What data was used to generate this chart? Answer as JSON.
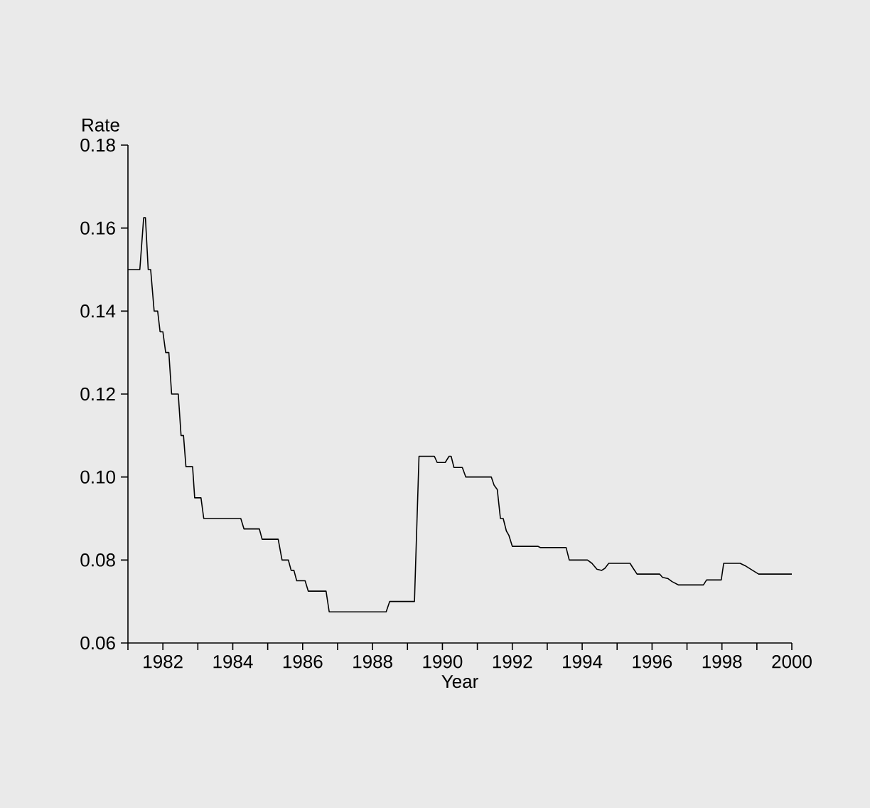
{
  "chart_data": {
    "type": "line",
    "xlabel": "Year",
    "ylabel": "Rate",
    "xlim": [
      1981,
      2000
    ],
    "ylim": [
      0.06,
      0.18
    ],
    "xticks": [
      {
        "value": 1981,
        "label": null
      },
      {
        "value": 1982,
        "label": "1982"
      },
      {
        "value": 1983,
        "label": null
      },
      {
        "value": 1984,
        "label": "1984"
      },
      {
        "value": 1985,
        "label": null
      },
      {
        "value": 1986,
        "label": "1986"
      },
      {
        "value": 1987,
        "label": null
      },
      {
        "value": 1988,
        "label": "1988"
      },
      {
        "value": 1989,
        "label": null
      },
      {
        "value": 1990,
        "label": "1990"
      },
      {
        "value": 1991,
        "label": null
      },
      {
        "value": 1992,
        "label": "1992"
      },
      {
        "value": 1993,
        "label": null
      },
      {
        "value": 1994,
        "label": "1994"
      },
      {
        "value": 1995,
        "label": null
      },
      {
        "value": 1996,
        "label": "1996"
      },
      {
        "value": 1997,
        "label": null
      },
      {
        "value": 1998,
        "label": "1998"
      },
      {
        "value": 1999,
        "label": null
      },
      {
        "value": 2000,
        "label": "2000"
      }
    ],
    "yticks": [
      {
        "value": 0.06,
        "label": "0.06"
      },
      {
        "value": 0.08,
        "label": "0.08"
      },
      {
        "value": 0.1,
        "label": "0.10"
      },
      {
        "value": 0.12,
        "label": "0.12"
      },
      {
        "value": 0.14,
        "label": "0.14"
      },
      {
        "value": 0.16,
        "label": "0.16"
      },
      {
        "value": 0.18,
        "label": "0.18"
      }
    ],
    "grid": false,
    "marker": "none",
    "line_style": "solid",
    "series": [
      {
        "color": "#000000",
        "x": [
          1981,
          1981.34,
          1981.45,
          1981.5,
          1981.58,
          1981.65,
          1981.75,
          1981.85,
          1981.92,
          1982,
          1982.08,
          1982.17,
          1982.25,
          1982.44,
          1982.52,
          1982.59,
          1982.66,
          1982.85,
          1982.91,
          1983.09,
          1983.17,
          1984.23,
          1984.32,
          1984.76,
          1984.84,
          1985.3,
          1985.41,
          1985.59,
          1985.67,
          1985.75,
          1985.83,
          1986.07,
          1986.16,
          1986.67,
          1986.76,
          1988.39,
          1988.49,
          1989.2,
          1989.33,
          1989.77,
          1989.85,
          1990.08,
          1990.19,
          1990.25,
          1990.33,
          1990.57,
          1990.67,
          1991.4,
          1991.48,
          1991.57,
          1991.66,
          1991.74,
          1991.83,
          1991.9,
          1992,
          1992.73,
          1992.8,
          1993.54,
          1993.63,
          1994.15,
          1994.28,
          1994.42,
          1994.56,
          1994.65,
          1994.76,
          1995.37,
          1995.46,
          1995.57,
          1996.22,
          1996.3,
          1996.46,
          1996.57,
          1996.75,
          1997.47,
          1997.56,
          1997.98,
          1998.05,
          1998.52,
          1998.69,
          1998.86,
          1999.05,
          2000
        ],
        "values": [
          0.15,
          0.15,
          0.1625,
          0.1625,
          0.15,
          0.15,
          0.14,
          0.14,
          0.135,
          0.135,
          0.13,
          0.13,
          0.12,
          0.12,
          0.11,
          0.11,
          0.1025,
          0.1025,
          0.095,
          0.095,
          0.09,
          0.09,
          0.0875,
          0.0875,
          0.085,
          0.085,
          0.08,
          0.08,
          0.0775,
          0.0775,
          0.075,
          0.075,
          0.0725,
          0.0725,
          0.0675,
          0.0675,
          0.07,
          0.07,
          0.105,
          0.105,
          0.1035,
          0.1035,
          0.105,
          0.105,
          0.1023,
          0.1023,
          0.1,
          0.1,
          0.098,
          0.097,
          0.09,
          0.09,
          0.087,
          0.086,
          0.0833,
          0.0833,
          0.083,
          0.083,
          0.08,
          0.08,
          0.0792,
          0.0778,
          0.0775,
          0.078,
          0.0792,
          0.0792,
          0.078,
          0.0766,
          0.0766,
          0.0758,
          0.0755,
          0.0748,
          0.074,
          0.074,
          0.0752,
          0.0752,
          0.0792,
          0.0792,
          0.0785,
          0.0776,
          0.0766,
          0.0766
        ]
      }
    ]
  }
}
